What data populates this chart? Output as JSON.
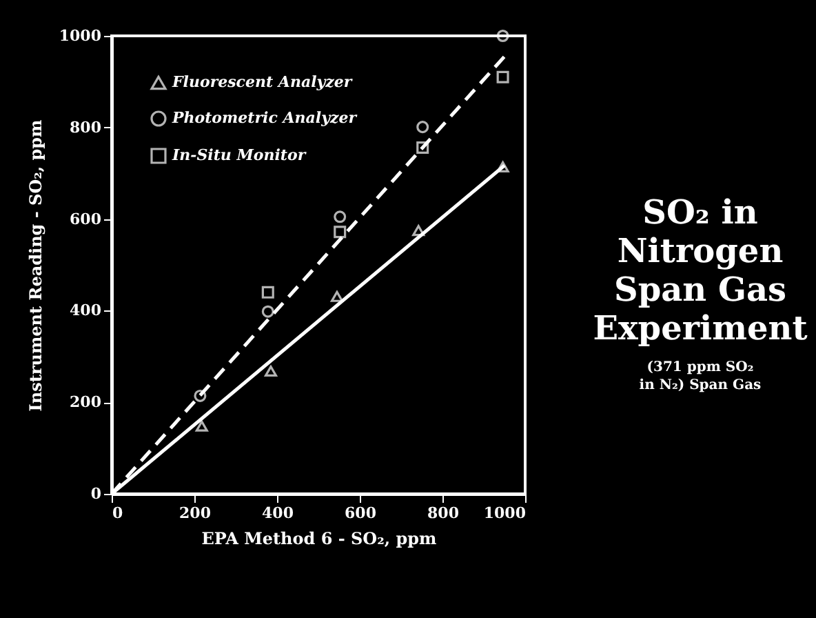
{
  "chart_data": {
    "type": "scatter",
    "title": "SO₂ in Nitrogen Span Gas Experiment",
    "subtitle": "(371 ppm SO₂ in N₂) Span Gas",
    "xlabel": "EPA Method 6 - SO₂, ppm",
    "ylabel": "Instrument Reading - SO₂, ppm",
    "xlim": [
      0,
      1000
    ],
    "ylim": [
      0,
      1000
    ],
    "xticks": [
      0,
      200,
      400,
      600,
      800,
      1000
    ],
    "yticks": [
      0,
      200,
      400,
      600,
      800,
      1000
    ],
    "grid": false,
    "legend": "top left",
    "series": [
      {
        "name": "Fluorescent Analyzer",
        "marker": "triangle",
        "color": "#ffffff",
        "x": [
          218,
          385,
          545,
          742,
          946
        ],
        "values": [
          148,
          268,
          431,
          575,
          714
        ]
      },
      {
        "name": "Photometric Analyzer",
        "marker": "circle",
        "color": "#ffffff",
        "x": [
          214,
          378,
          552,
          752,
          946
        ],
        "values": [
          214,
          398,
          605,
          801,
          1000
        ]
      },
      {
        "name": "In-Situ Monitor",
        "marker": "square",
        "color": "#ffffff",
        "x": [
          378,
          552,
          752,
          946
        ],
        "values": [
          440,
          572,
          756,
          910
        ]
      },
      {
        "type": "line",
        "line_style": "solid",
        "marker": "none",
        "color": "#ffffff",
        "x": [
          0,
          950
        ],
        "values": [
          0,
          717
        ]
      },
      {
        "type": "line",
        "line_style": "dashed",
        "marker": "none",
        "color": "#ffffff",
        "x": [
          0,
          950
        ],
        "values": [
          0,
          955
        ]
      }
    ]
  }
}
